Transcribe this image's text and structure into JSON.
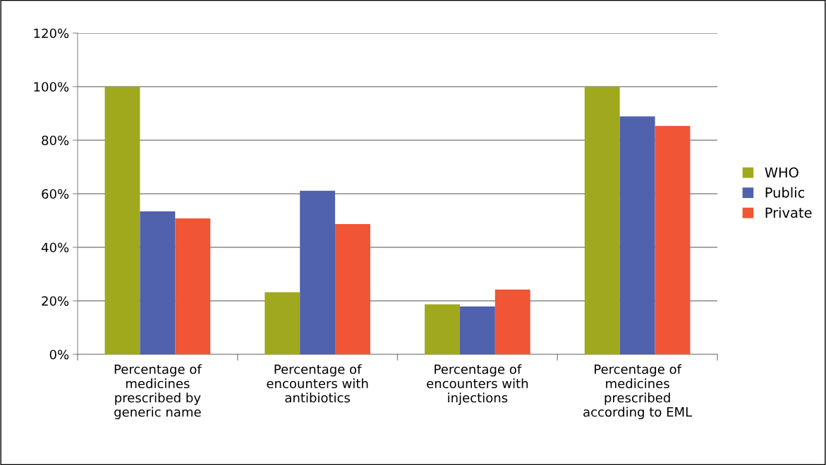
{
  "chart_data": {
    "type": "bar",
    "categories": [
      "Percentage of medicines prescribed by generic name",
      "Percentage of encounters with antibiotics",
      "Percentage of encounters with injections",
      "Percentage of medicines prescribed according to EML"
    ],
    "series": [
      {
        "name": "WHO",
        "color": "#a0a91d",
        "values": [
          100,
          23.2,
          18.7,
          100
        ]
      },
      {
        "name": "Public",
        "color": "#5061ad",
        "values": [
          53.4,
          61.1,
          17.9,
          88.9
        ]
      },
      {
        "name": "Private",
        "color": "#f05535",
        "values": [
          50.8,
          48.7,
          24.2,
          85.3
        ]
      }
    ],
    "ylim": [
      0,
      120
    ],
    "yticks": [
      {
        "value": 0,
        "label": "0%"
      },
      {
        "value": 20,
        "label": "20%"
      },
      {
        "value": 40,
        "label": "40%"
      },
      {
        "value": 60,
        "label": "60%"
      },
      {
        "value": 80,
        "label": "80%"
      },
      {
        "value": 100,
        "label": "100%"
      },
      {
        "value": 120,
        "label": "120%"
      }
    ],
    "grid": "y",
    "legend": "right"
  }
}
